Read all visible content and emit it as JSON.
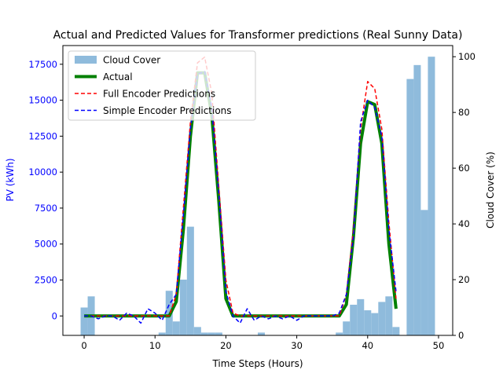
{
  "chart_data": {
    "type": "line",
    "title": "Actual and Predicted Values for Transformer predictions (Real Sunny Data)",
    "xlabel": "Time Steps (Hours)",
    "ylabel_left": "PV (kWh)",
    "ylabel_right": "Cloud Cover (%)",
    "xlim": [
      -3,
      52
    ],
    "ylim_left": [
      -1350,
      18800
    ],
    "ylim_right": [
      0,
      104
    ],
    "x_ticks": [
      0,
      10,
      20,
      30,
      40,
      50
    ],
    "y_ticks_left": [
      0,
      2500,
      5000,
      7500,
      10000,
      12500,
      15000,
      17500
    ],
    "y_ticks_right": [
      0,
      20,
      40,
      60,
      80,
      100
    ],
    "grid": false,
    "legend_position": "top-left",
    "colors": {
      "cloud": "#8fbbdc",
      "actual": "#008000",
      "full": "#ff0000",
      "simple": "#0000ff",
      "left_axis": "#0000ff"
    },
    "cloud_cover": {
      "name": "Cloud Cover",
      "x": [
        0,
        1,
        2,
        3,
        4,
        5,
        6,
        7,
        8,
        9,
        10,
        11,
        12,
        13,
        14,
        15,
        16,
        17,
        18,
        19,
        20,
        21,
        22,
        23,
        24,
        25,
        26,
        27,
        28,
        29,
        30,
        31,
        32,
        33,
        34,
        35,
        36,
        37,
        38,
        39,
        40,
        41,
        42,
        43,
        44,
        45,
        46,
        47,
        48,
        49
      ],
      "values": [
        10,
        14,
        0,
        0,
        0,
        0,
        0,
        0,
        0,
        0,
        0,
        1,
        16,
        5,
        20,
        39,
        3,
        1,
        1,
        1,
        0,
        0,
        0,
        0,
        0,
        1,
        0,
        0,
        0,
        0,
        0,
        0,
        0,
        0,
        0,
        0,
        1,
        5,
        11,
        13,
        9,
        8,
        12,
        14,
        3,
        0,
        92,
        97,
        45,
        100
      ]
    },
    "series": [
      {
        "name": "Actual",
        "x": [
          0,
          1,
          2,
          3,
          4,
          5,
          6,
          7,
          8,
          9,
          10,
          11,
          12,
          13,
          14,
          15,
          16,
          17,
          18,
          19,
          20,
          21,
          22,
          23,
          24,
          25,
          26,
          27,
          28,
          29,
          30,
          31,
          32,
          33,
          34,
          35,
          36,
          37,
          38,
          39,
          40,
          41,
          42,
          43,
          44
        ],
        "values": [
          0,
          0,
          0,
          0,
          0,
          0,
          0,
          0,
          0,
          0,
          0,
          0,
          0,
          1000,
          6000,
          12500,
          16900,
          16900,
          14000,
          8000,
          1200,
          0,
          0,
          0,
          0,
          0,
          0,
          0,
          0,
          0,
          0,
          0,
          0,
          0,
          0,
          0,
          0,
          800,
          5500,
          12000,
          14900,
          14700,
          12000,
          5000,
          500
        ]
      },
      {
        "name": "Full Encoder Predictions",
        "x": [
          0,
          1,
          2,
          3,
          4,
          5,
          6,
          7,
          8,
          9,
          10,
          11,
          12,
          13,
          14,
          15,
          16,
          17,
          18,
          19,
          20,
          21,
          22,
          23,
          24,
          25,
          26,
          27,
          28,
          29,
          30,
          31,
          32,
          33,
          34,
          35,
          36,
          37,
          38,
          39,
          40,
          41,
          42,
          43,
          44
        ],
        "values": [
          0,
          0,
          0,
          0,
          0,
          0,
          0,
          0,
          0,
          0,
          0,
          0,
          0,
          1500,
          7500,
          13500,
          17600,
          18000,
          15500,
          9000,
          2500,
          200,
          0,
          0,
          0,
          0,
          0,
          0,
          0,
          0,
          0,
          0,
          0,
          0,
          0,
          0,
          0,
          1500,
          6000,
          13000,
          16300,
          15800,
          13000,
          6500,
          1200
        ]
      },
      {
        "name": "Simple Encoder Predictions",
        "x": [
          0,
          1,
          2,
          3,
          4,
          5,
          6,
          7,
          8,
          9,
          10,
          11,
          12,
          13,
          14,
          15,
          16,
          17,
          18,
          19,
          20,
          21,
          22,
          23,
          24,
          25,
          26,
          27,
          28,
          29,
          30,
          31,
          32,
          33,
          34,
          35,
          36,
          37,
          38,
          39,
          40,
          41,
          42,
          43,
          44
        ],
        "values": [
          0,
          0,
          -200,
          0,
          0,
          -300,
          200,
          0,
          -500,
          500,
          200,
          -300,
          800,
          1500,
          7000,
          13000,
          16800,
          17000,
          14500,
          8500,
          1700,
          0,
          -500,
          500,
          -300,
          0,
          -200,
          0,
          -200,
          0,
          -300,
          0,
          0,
          0,
          0,
          0,
          200,
          1500,
          5500,
          13500,
          15000,
          14500,
          12500,
          6000,
          1700
        ]
      }
    ]
  }
}
